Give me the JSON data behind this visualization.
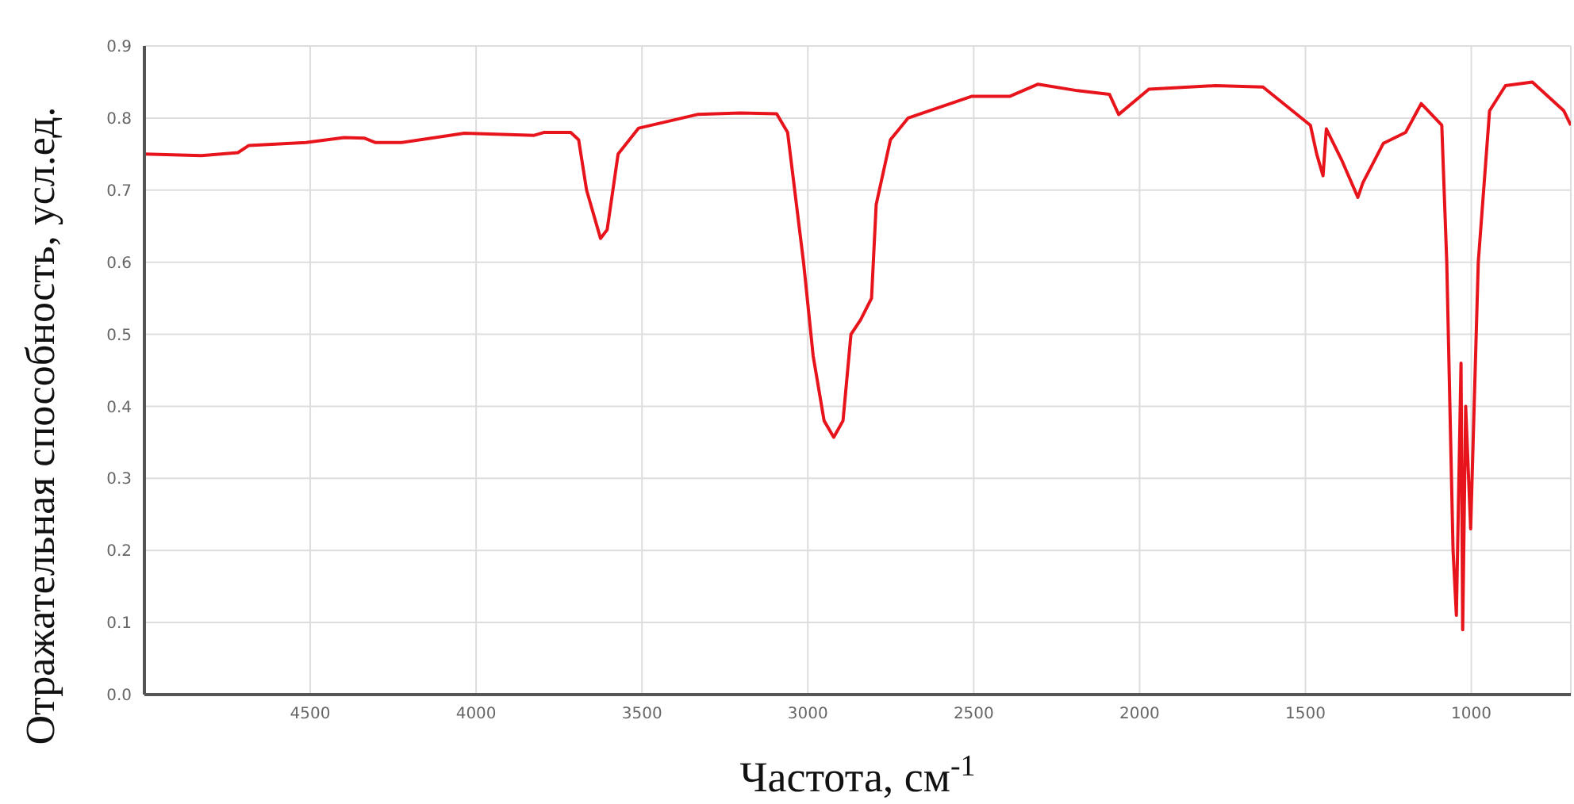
{
  "chart_data": {
    "type": "line",
    "xlabel": "Частота, см$^{-1}$",
    "ylabel": "Отражательная способность, усл.ед.",
    "xlim": [
      5000,
      700
    ],
    "xticks": [
      4500,
      4000,
      3500,
      3000,
      2500,
      2000,
      1500,
      1000
    ],
    "ylim": [
      0,
      0.9
    ],
    "yticks": [
      {
        "value": 0,
        "label": "0.0"
      },
      0.1,
      0.2,
      0.3,
      0.4,
      0.5,
      0.6,
      0.7,
      0.8,
      0.9
    ],
    "grid": true,
    "legend": false,
    "marker": "none",
    "line_style": "solid",
    "series": [
      {
        "color": "#e8141c",
        "x": [
          5000,
          4828,
          4718,
          4685,
          4513,
          4398,
          4336,
          4303,
          4226,
          4035,
          3825,
          3796,
          3715,
          3691,
          3667,
          3625,
          3605,
          3572,
          3510,
          3333,
          3204,
          3094,
          3061,
          3013,
          2984,
          2951,
          2922,
          2894,
          2870,
          2841,
          2808,
          2794,
          2751,
          2698,
          2507,
          2392,
          2306,
          2187,
          2091,
          2063,
          1972,
          1771,
          1628,
          1485,
          1466,
          1447,
          1437,
          1389,
          1342,
          1327,
          1265,
          1198,
          1151,
          1089,
          1074,
          1055,
          1045,
          1031,
          1026,
          1017,
          1002,
          979,
          945,
          897,
          816,
          721,
          700
        ],
        "values": [
          0.75,
          0.748,
          0.752,
          0.762,
          0.766,
          0.773,
          0.772,
          0.766,
          0.766,
          0.779,
          0.776,
          0.78,
          0.78,
          0.77,
          0.7,
          0.633,
          0.645,
          0.75,
          0.786,
          0.805,
          0.807,
          0.806,
          0.78,
          0.6,
          0.47,
          0.38,
          0.357,
          0.38,
          0.5,
          0.52,
          0.55,
          0.68,
          0.77,
          0.8,
          0.83,
          0.83,
          0.847,
          0.838,
          0.833,
          0.805,
          0.84,
          0.845,
          0.843,
          0.79,
          0.75,
          0.72,
          0.785,
          0.74,
          0.69,
          0.71,
          0.765,
          0.78,
          0.82,
          0.79,
          0.6,
          0.2,
          0.11,
          0.46,
          0.09,
          0.4,
          0.23,
          0.6,
          0.81,
          0.845,
          0.85,
          0.81,
          0.79
        ]
      }
    ]
  }
}
